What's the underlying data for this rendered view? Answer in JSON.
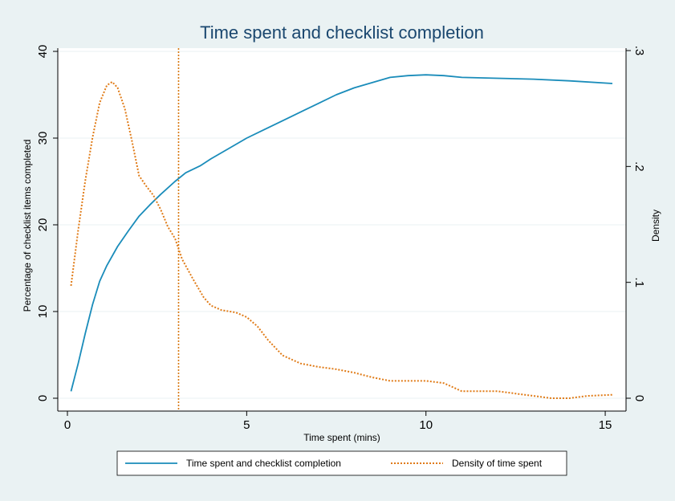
{
  "chart_data": {
    "type": "line",
    "title": "Time spent and checklist completion",
    "xlabel": "Time spent (mins)",
    "ylabel_left": "Percentage of checklist items completed",
    "ylabel_right": "Density",
    "xlim": [
      0,
      15.2
    ],
    "ylim_left": [
      0,
      40
    ],
    "ylim_right": [
      0,
      0.3
    ],
    "x_ticks": [
      {
        "value": 0,
        "label": "0"
      },
      {
        "value": 5,
        "label": "5"
      },
      {
        "value": 10,
        "label": "10"
      },
      {
        "value": 15,
        "label": "15"
      }
    ],
    "y_ticks_left": [
      {
        "value": 0,
        "label": "0"
      },
      {
        "value": 10,
        "label": "10"
      },
      {
        "value": 20,
        "label": "20"
      },
      {
        "value": 30,
        "label": "30"
      },
      {
        "value": 40,
        "label": "40"
      }
    ],
    "y_ticks_right": [
      {
        "value": 0,
        "label": "0"
      },
      {
        "value": 0.1,
        "label": ".1"
      },
      {
        "value": 0.2,
        "label": ".2"
      },
      {
        "value": 0.3,
        "label": ".3"
      }
    ],
    "grid": true,
    "legend_position": "bottom",
    "reference_line_x": 3.1,
    "colors": {
      "completion": "#1a8cba",
      "density": "#e07b17",
      "reference": "#d9780f",
      "title": "#1a476f",
      "plot_bg": "#ffffff",
      "outer_bg": "#eaf2f3",
      "grid": "#eaf2f3"
    },
    "series": [
      {
        "name": "Time spent and checklist completion",
        "axis": "left",
        "style": "solid",
        "x": [
          0.1,
          0.3,
          0.5,
          0.7,
          0.9,
          1.1,
          1.4,
          1.7,
          2.0,
          2.3,
          2.6,
          3.0,
          3.3,
          3.7,
          4.0,
          4.5,
          5.0,
          5.5,
          6.0,
          6.5,
          7.0,
          7.5,
          8.0,
          8.5,
          9.0,
          9.5,
          10.0,
          10.5,
          11.0,
          12.0,
          13.0,
          14.0,
          15.2
        ],
        "y": [
          0.8,
          4.0,
          7.5,
          10.8,
          13.5,
          15.3,
          17.5,
          19.3,
          21.0,
          22.3,
          23.5,
          25.0,
          26.0,
          26.8,
          27.6,
          28.8,
          30.0,
          31.0,
          32.0,
          33.0,
          34.0,
          35.0,
          35.8,
          36.4,
          37.0,
          37.2,
          37.3,
          37.2,
          37.0,
          36.9,
          36.8,
          36.6,
          36.3
        ]
      },
      {
        "name": "Density of time spent",
        "axis": "right",
        "style": "dotted",
        "x": [
          0.1,
          0.3,
          0.5,
          0.7,
          0.9,
          1.1,
          1.25,
          1.4,
          1.6,
          1.8,
          2.0,
          2.2,
          2.4,
          2.6,
          2.8,
          3.0,
          3.2,
          3.5,
          3.8,
          4.0,
          4.3,
          4.7,
          5.0,
          5.3,
          5.6,
          6.0,
          6.5,
          7.0,
          7.5,
          8.0,
          8.5,
          9.0,
          9.5,
          10.0,
          10.5,
          11.0,
          11.5,
          12.0,
          12.5,
          13.0,
          13.5,
          14.0,
          14.5,
          15.2
        ],
        "y": [
          0.097,
          0.145,
          0.188,
          0.225,
          0.255,
          0.27,
          0.273,
          0.268,
          0.25,
          0.222,
          0.192,
          0.183,
          0.175,
          0.163,
          0.148,
          0.138,
          0.12,
          0.103,
          0.087,
          0.08,
          0.076,
          0.074,
          0.07,
          0.062,
          0.05,
          0.037,
          0.03,
          0.027,
          0.025,
          0.022,
          0.018,
          0.015,
          0.015,
          0.015,
          0.013,
          0.006,
          0.006,
          0.006,
          0.004,
          0.002,
          0.0,
          0.0,
          0.002,
          0.003
        ]
      }
    ]
  }
}
